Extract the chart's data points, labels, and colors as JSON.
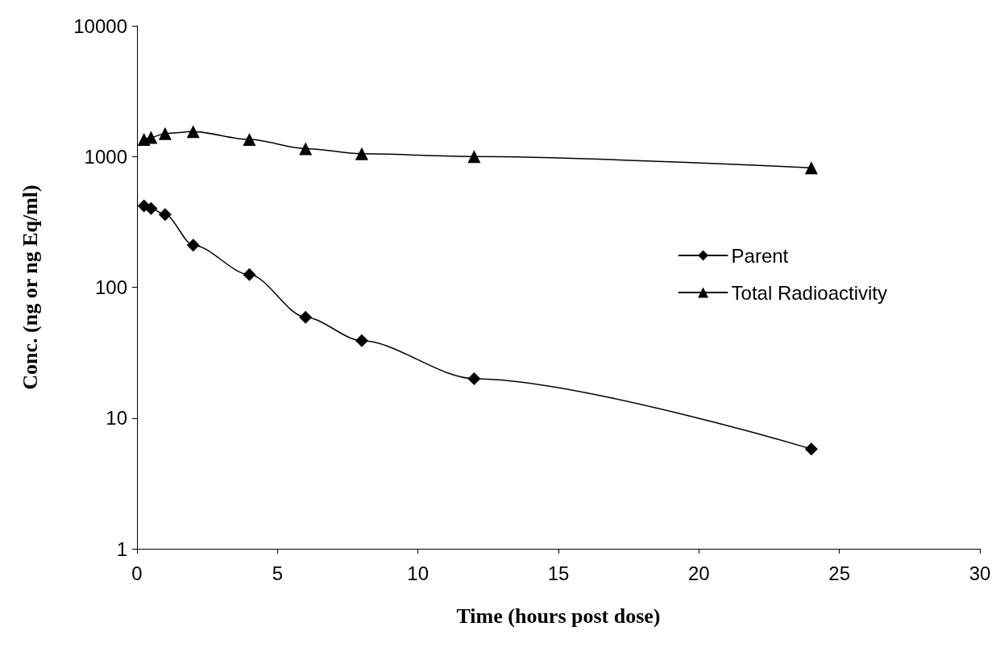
{
  "chart_data": {
    "type": "line",
    "xlabel": "Time (hours post dose)",
    "ylabel": "Conc. (ng or ng Eq/ml)",
    "x": [
      0.25,
      0.5,
      1,
      2,
      4,
      6,
      8,
      12,
      24
    ],
    "series": [
      {
        "name": "Parent",
        "color": "#000000",
        "marker": "diamond",
        "values": [
          420,
          400,
          360,
          210,
          125,
          59,
          39,
          20,
          5.8
        ]
      },
      {
        "name": "Total Radioactivity",
        "color": "#000000",
        "marker": "triangle",
        "values": [
          1350,
          1400,
          1500,
          1550,
          1350,
          1150,
          1050,
          1000,
          820
        ]
      }
    ],
    "xlim": [
      0,
      30
    ],
    "xticks": [
      0,
      5,
      10,
      15,
      20,
      25,
      30
    ],
    "ylim": [
      1,
      10000
    ],
    "yticks": [
      1,
      10,
      100,
      1000,
      10000
    ],
    "log": true,
    "grid": false,
    "legend": "right",
    "line_style": "solid"
  }
}
